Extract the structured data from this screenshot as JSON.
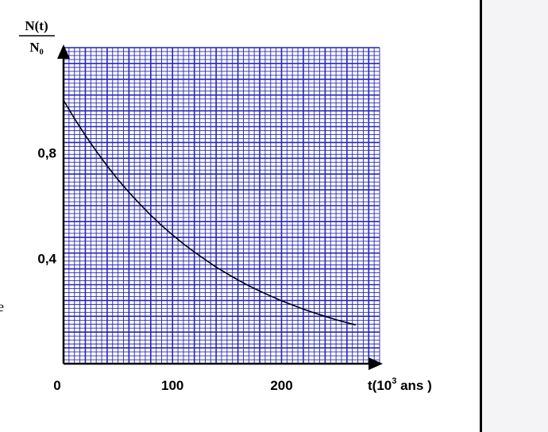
{
  "chart_data": {
    "type": "line",
    "y_axis_label": {
      "numerator": "N(t)",
      "denominator": "N₀"
    },
    "x_axis_label": {
      "prefix": "t(10",
      "exponent": "3",
      "suffix": " ans )"
    },
    "x_ticks": [
      {
        "value": 0,
        "label": "0"
      },
      {
        "value": 100,
        "label": "100"
      },
      {
        "value": 200,
        "label": "200"
      }
    ],
    "y_ticks": [
      {
        "value": 0.8,
        "label": "0,8"
      },
      {
        "value": 0.4,
        "label": "0,4"
      }
    ],
    "xlim": [
      0,
      290
    ],
    "ylim": [
      0,
      1.2
    ],
    "grid": true,
    "grid_color": "#2424b8",
    "curve_color": "#000000",
    "series": [
      {
        "x": [
          0,
          10,
          20,
          30,
          40,
          50,
          60,
          70,
          80,
          90,
          100,
          110,
          120,
          130,
          140,
          150,
          160,
          170,
          180,
          190,
          200,
          210,
          220,
          230,
          240,
          250,
          260,
          268
        ],
        "y": [
          1.0,
          0.931,
          0.867,
          0.807,
          0.751,
          0.699,
          0.651,
          0.606,
          0.564,
          0.525,
          0.489,
          0.455,
          0.424,
          0.395,
          0.367,
          0.342,
          0.318,
          0.296,
          0.276,
          0.257,
          0.239,
          0.223,
          0.207,
          0.193,
          0.18,
          0.167,
          0.156,
          0.147
        ]
      }
    ]
  },
  "stray_text": "e"
}
